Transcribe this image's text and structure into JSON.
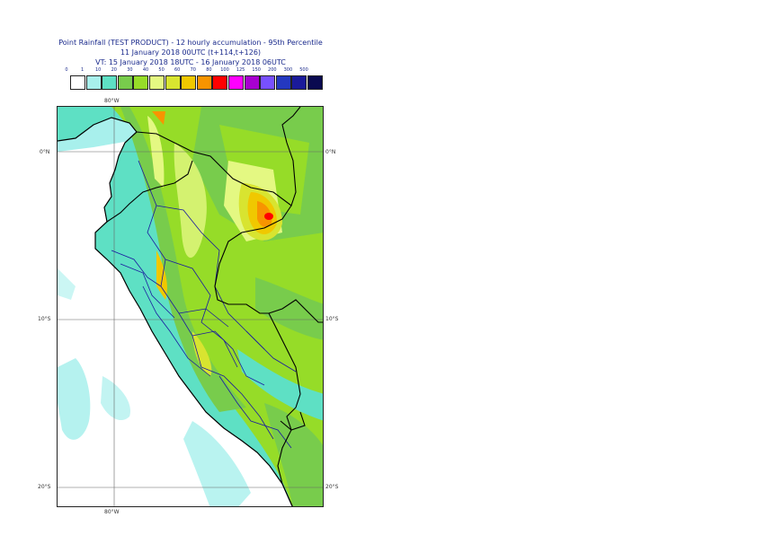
{
  "title": {
    "line1": "Point Rainfall (TEST PRODUCT) - 12 hourly accumulation - 95th Percentile",
    "line2": "11 January 2018 00UTC (t+114,t+126)",
    "line3": "VT: 15 January 2018 18UTC - 16 January 2018 06UTC"
  },
  "legend": {
    "ticks": [
      "0",
      "1",
      "10",
      "20",
      "30",
      "40",
      "50",
      "60",
      "70",
      "80",
      "100",
      "125",
      "150",
      "200",
      "300",
      "500"
    ],
    "colors": [
      "#ffffff",
      "#a8f0ec",
      "#5ee0c4",
      "#78cc4c",
      "#96dc28",
      "#e4f882",
      "#d8e430",
      "#f0c800",
      "#f89400",
      "#ff0000",
      "#ff00ff",
      "#a800d0",
      "#7850ff",
      "#2438c0",
      "#1a1a9a",
      "#0a0a50"
    ]
  },
  "grid": {
    "lon_top": "80°W",
    "lon_bottom": "80°W",
    "lat_labels": [
      "0°N",
      "10°S",
      "20°S"
    ]
  },
  "map": {
    "ocean_color": "#ffffff",
    "land_color": "#96dc28",
    "coast_color": "#000000",
    "boundary_color": "#1a1aa0"
  }
}
